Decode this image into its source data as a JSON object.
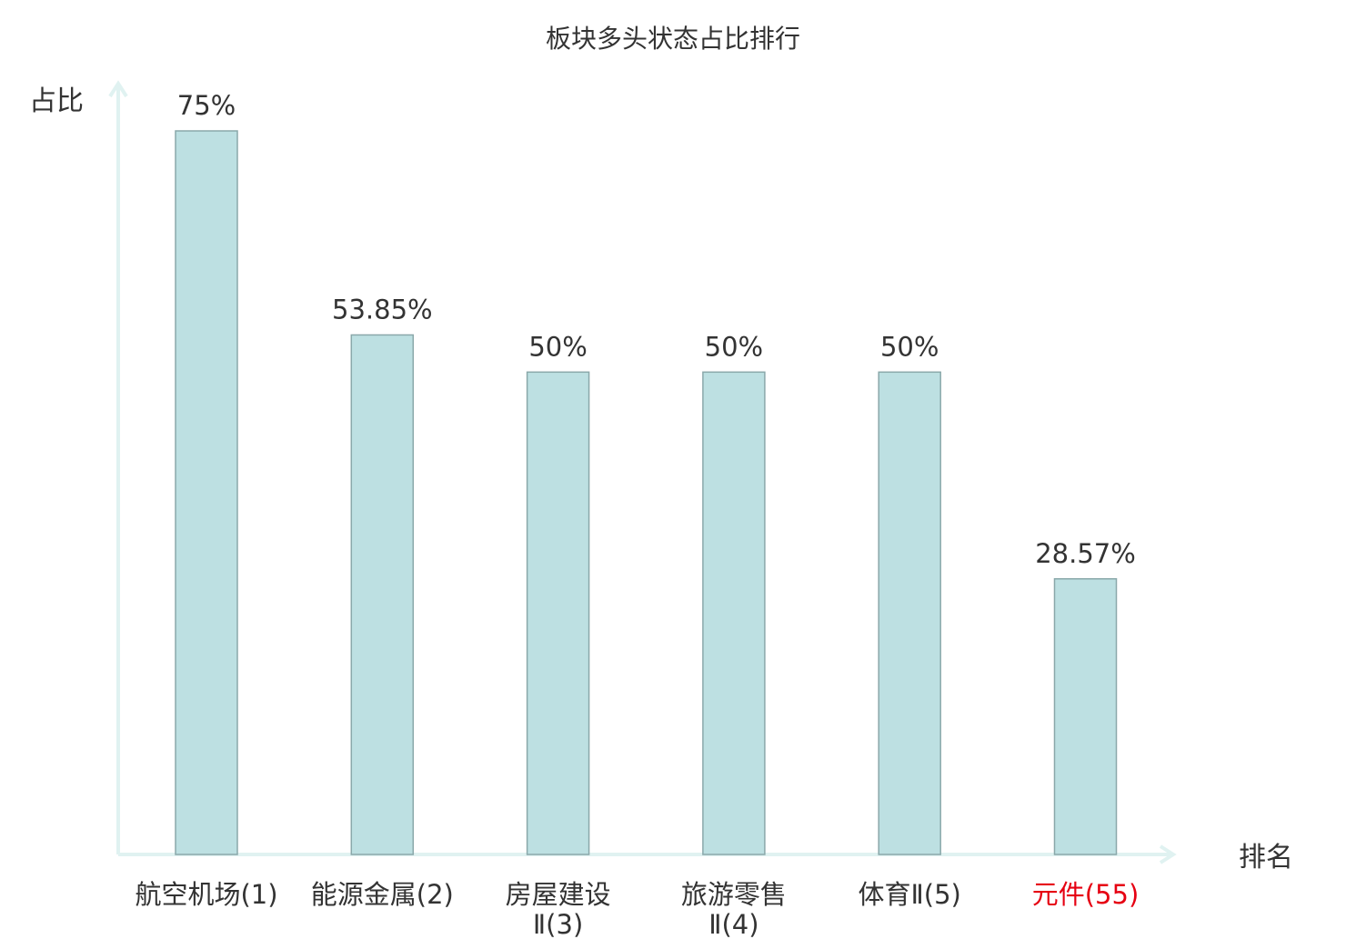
{
  "chart_data": {
    "type": "bar",
    "title": "板块多头状态占比排行",
    "ylabel": "占比",
    "xlabel": "排名",
    "ylim": [
      0,
      75
    ],
    "grid": false,
    "legend": "none",
    "categories": [
      [
        "航空机场(1)"
      ],
      [
        "能源金属(2)"
      ],
      [
        "房屋建设",
        "Ⅱ(3)"
      ],
      [
        "旅游零售",
        "Ⅱ(4)"
      ],
      [
        "体育Ⅱ(5)"
      ],
      [
        "元件(55)"
      ]
    ],
    "values": [
      75,
      53.85,
      50,
      50,
      50,
      28.57
    ],
    "value_labels": [
      "75%",
      "53.85%",
      "50%",
      "50%",
      "50%",
      "28.57%"
    ],
    "highlight_index": 5
  },
  "colors": {
    "bar_fill": "#bde0e2",
    "bar_stroke": "#8aa8aa",
    "axis": "#e0f2f1",
    "text": "#333333",
    "highlight_text": "#e60012"
  }
}
